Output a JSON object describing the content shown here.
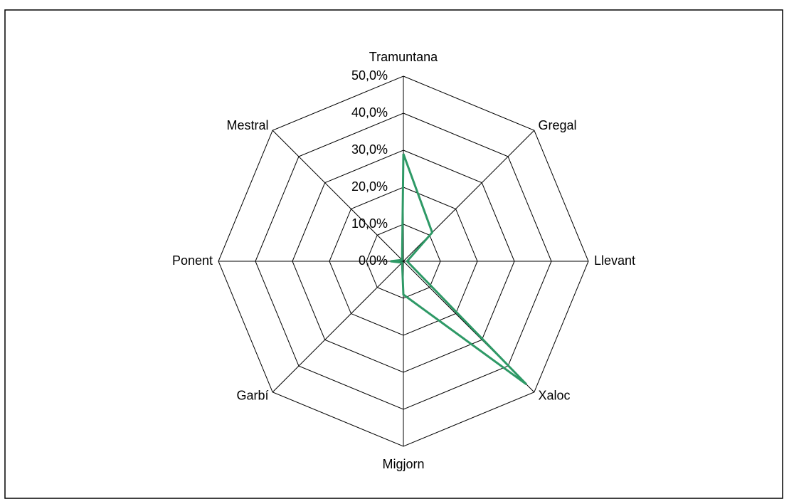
{
  "chart_data": {
    "type": "radar",
    "categories": [
      "Tramuntana",
      "Gregal",
      "Llevant",
      "Xaloc",
      "Migjorn",
      "Garbí",
      "Ponent",
      "Mestral"
    ],
    "series": [
      {
        "color": "#2e9966",
        "values": [
          29.0,
          11.0,
          1.0,
          47.0,
          9.0,
          0.5,
          3.5,
          0.5
        ]
      }
    ],
    "ylim": [
      0,
      50
    ],
    "yticks": [
      {
        "value": 0,
        "label": "0,0%"
      },
      {
        "value": 10,
        "label": "10,0%"
      },
      {
        "value": 20,
        "label": "20,0%"
      },
      {
        "value": 30,
        "label": "30,0%"
      },
      {
        "value": 40,
        "label": "40,0%"
      },
      {
        "value": 50,
        "label": "50,0%"
      }
    ],
    "grid": true
  }
}
